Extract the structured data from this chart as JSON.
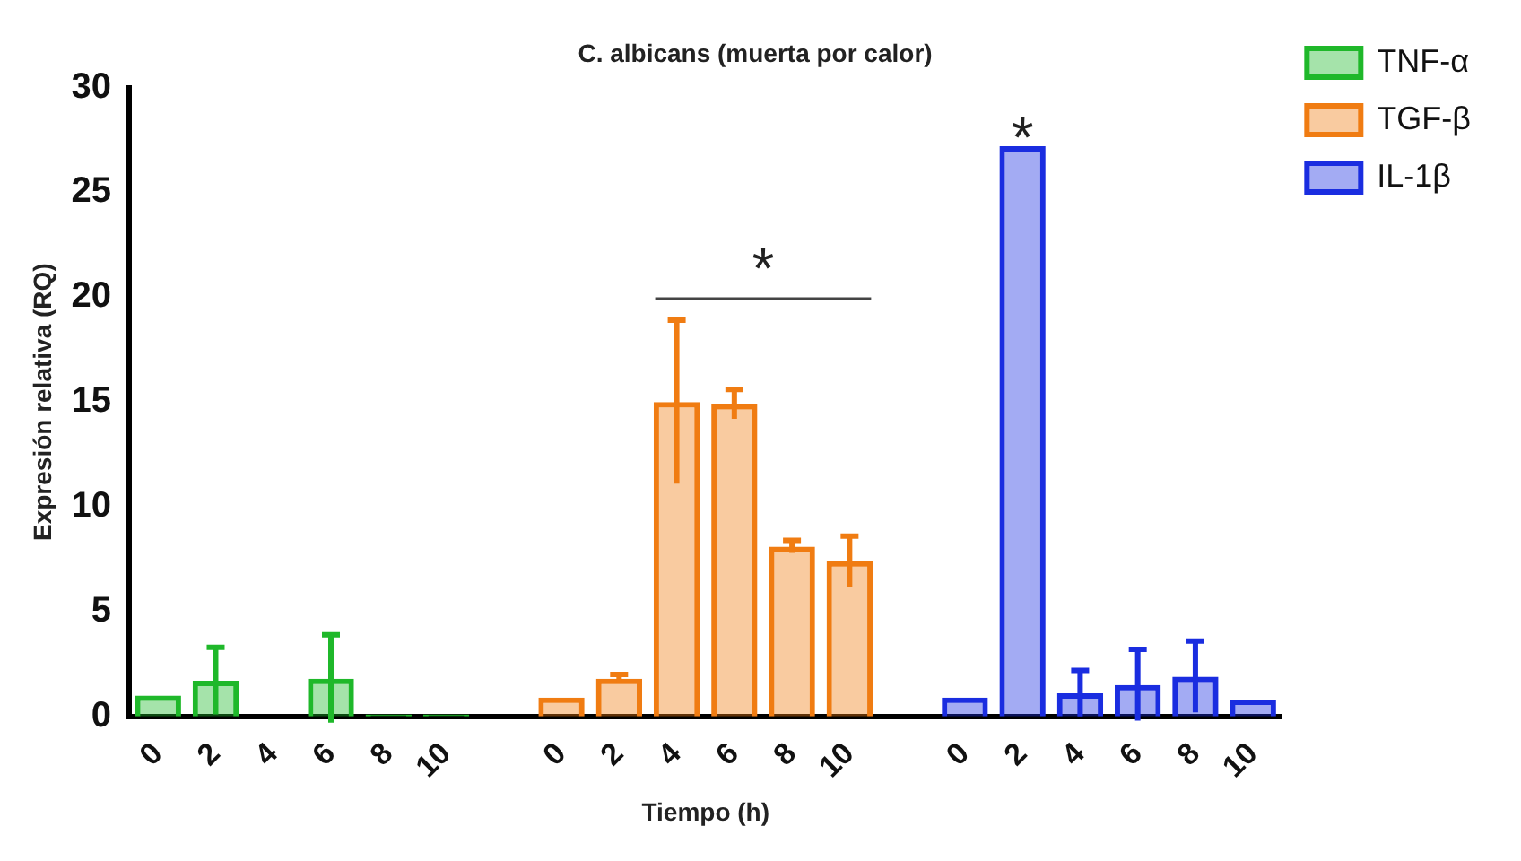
{
  "chart_data": {
    "type": "bar",
    "title": "C. albicans (muerta por calor)",
    "xlabel": "Tiempo (h)",
    "ylabel": "Expresión relativa (RQ)",
    "categories": [
      "0",
      "2",
      "4",
      "6",
      "8",
      "10",
      null,
      "0",
      "2",
      "4",
      "6",
      "8",
      "10",
      null,
      "0",
      "2",
      "4",
      "6",
      "8",
      "10"
    ],
    "series": [
      {
        "name": "TNF-α",
        "color": "#1fb82a",
        "values": [
          1,
          1.7,
          0,
          1.8,
          0.1,
          0.1,
          null,
          null,
          null,
          null,
          null,
          null,
          null,
          null,
          null,
          null,
          null,
          null,
          null,
          null
        ],
        "errors": [
          null,
          1.6,
          null,
          2.1,
          null,
          null,
          null,
          null,
          null,
          null,
          null,
          null,
          null,
          null,
          null,
          null,
          null,
          null,
          null,
          null
        ]
      },
      {
        "name": "TGF-β",
        "color": "#f07c12",
        "values": [
          null,
          null,
          null,
          null,
          null,
          null,
          null,
          0.9,
          1.8,
          15,
          14.9,
          8.1,
          7.4,
          null,
          null,
          null,
          null,
          null,
          null,
          null
        ],
        "errors": [
          null,
          null,
          null,
          null,
          null,
          null,
          null,
          null,
          0.2,
          3.9,
          0.7,
          0.3,
          1.2,
          null,
          null,
          null,
          null,
          null,
          null,
          null
        ]
      },
      {
        "name": "IL-1β",
        "color": "#1a2de0",
        "values": [
          null,
          null,
          null,
          null,
          null,
          null,
          null,
          null,
          null,
          null,
          null,
          null,
          null,
          null,
          0.9,
          27.2,
          1.1,
          1.5,
          1.9,
          0.8
        ],
        "errors": [
          null,
          null,
          null,
          null,
          null,
          null,
          null,
          null,
          null,
          null,
          null,
          null,
          null,
          null,
          null,
          null,
          1.1,
          1.7,
          1.7,
          null
        ]
      }
    ],
    "annotations": [
      "*",
      "*"
    ],
    "ylim": [
      0,
      30
    ],
    "yticks": [
      0,
      5,
      10,
      15,
      20,
      25,
      30
    ],
    "grid": false,
    "legend": "top right"
  }
}
